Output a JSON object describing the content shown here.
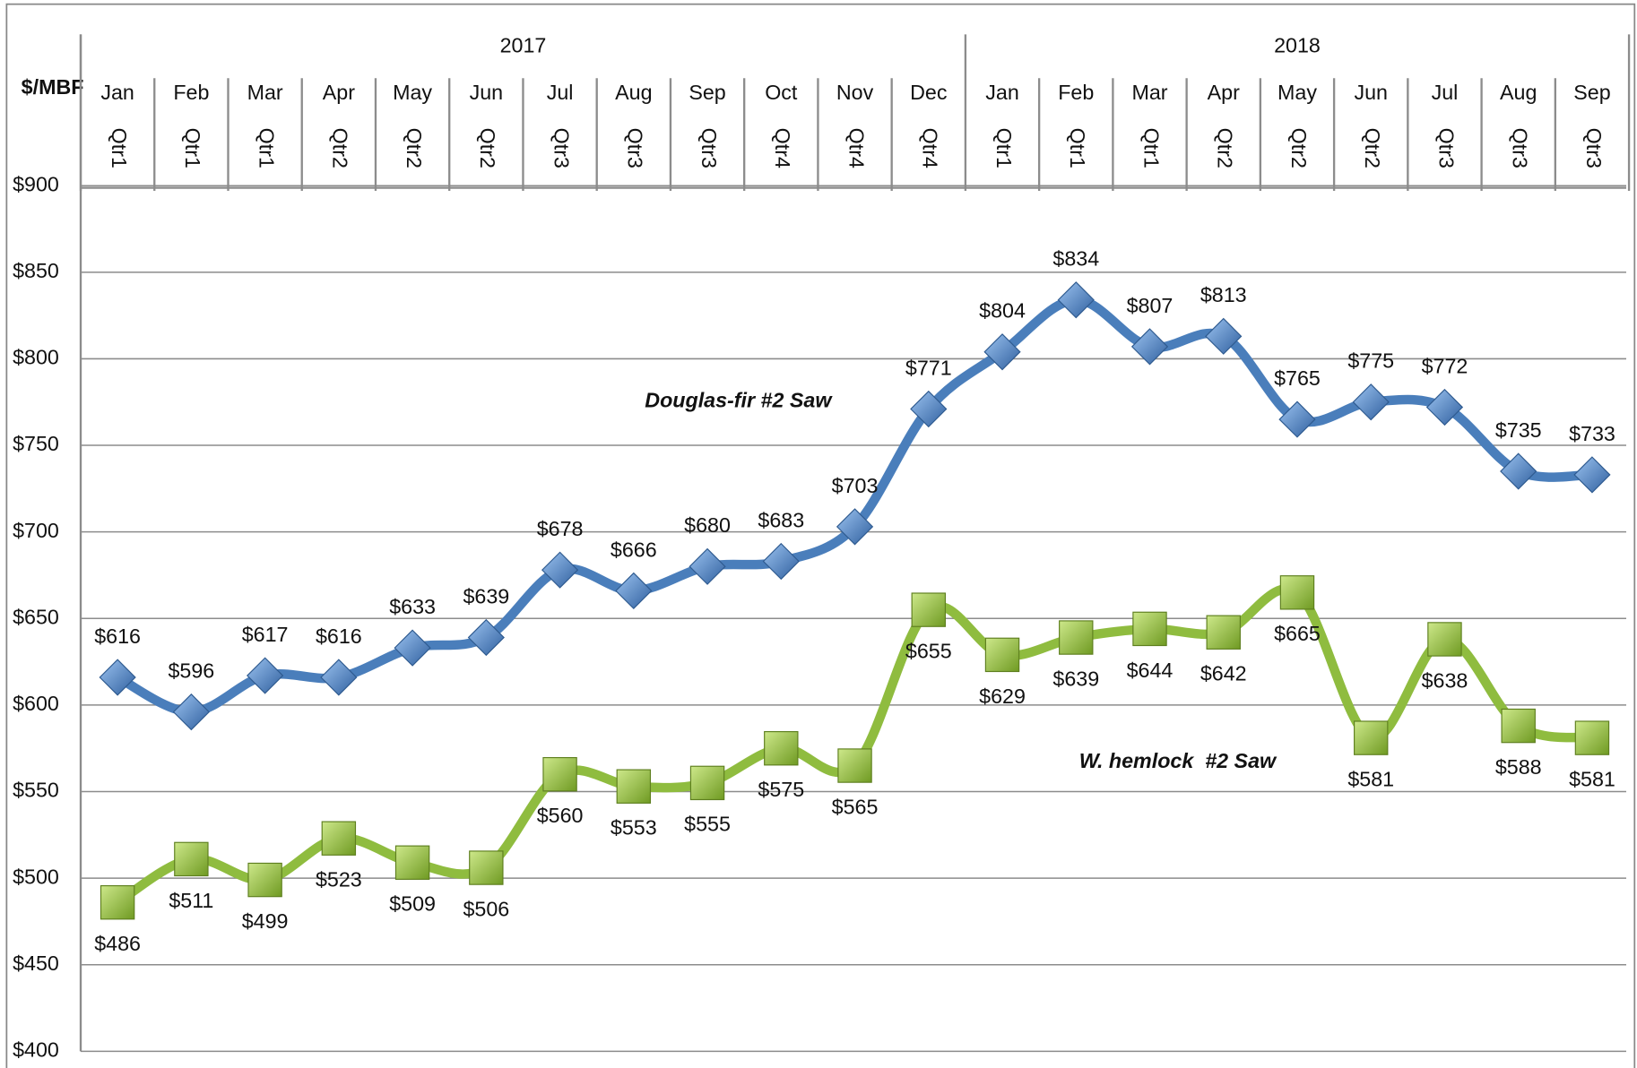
{
  "chart_data": {
    "type": "line",
    "y_label": "$/MBF",
    "years": [
      "2017",
      "2018"
    ],
    "categories": [
      "Jan",
      "Feb",
      "Mar",
      "Apr",
      "May",
      "Jun",
      "Jul",
      "Aug",
      "Sep",
      "Oct",
      "Nov",
      "Dec",
      "Jan",
      "Feb",
      "Mar",
      "Apr",
      "May",
      "Jun",
      "Jul",
      "Aug",
      "Sep"
    ],
    "quarters": [
      "Qtr1",
      "Qtr1",
      "Qtr1",
      "Qtr2",
      "Qtr2",
      "Qtr2",
      "Qtr3",
      "Qtr3",
      "Qtr3",
      "Qtr4",
      "Qtr4",
      "Qtr4",
      "Qtr1",
      "Qtr1",
      "Qtr1",
      "Qtr2",
      "Qtr2",
      "Qtr2",
      "Qtr3",
      "Qtr3",
      "Qtr3"
    ],
    "ylim": [
      400,
      900
    ],
    "yticks": [
      {
        "value": 400,
        "label": "$400"
      },
      {
        "value": 450,
        "label": "$450"
      },
      {
        "value": 500,
        "label": "$500"
      },
      {
        "value": 550,
        "label": "$550"
      },
      {
        "value": 600,
        "label": "$600"
      },
      {
        "value": 650,
        "label": "$650"
      },
      {
        "value": 700,
        "label": "$700"
      },
      {
        "value": 750,
        "label": "$750"
      },
      {
        "value": 800,
        "label": "$800"
      },
      {
        "value": 850,
        "label": "$850"
      },
      {
        "value": 900,
        "label": "$900"
      }
    ],
    "grid": true,
    "series": [
      {
        "name": "Douglas-fir #2 Saw",
        "color": "#4a7ebb",
        "marker": "diamond",
        "values": [
          616,
          596,
          617,
          616,
          633,
          639,
          678,
          666,
          680,
          683,
          703,
          771,
          804,
          834,
          807,
          813,
          765,
          775,
          772,
          735,
          733
        ],
        "value_labels": [
          "$616",
          "$596",
          "$617",
          "$616",
          "$633",
          "$639",
          "$678",
          "$666",
          "$680",
          "$683",
          "$703",
          "$771",
          "$804",
          "$834",
          "$807",
          "$813",
          "$765",
          "$775",
          "$772",
          "$735",
          "$733"
        ]
      },
      {
        "name": "W. hemlock  #2 Saw",
        "color": "#8fbc3f",
        "marker": "square",
        "values": [
          486,
          511,
          499,
          523,
          509,
          506,
          560,
          553,
          555,
          575,
          565,
          655,
          629,
          639,
          644,
          642,
          665,
          581,
          638,
          588,
          581
        ],
        "value_labels": [
          "$486",
          "$511",
          "$499",
          "$523",
          "$509",
          "$506",
          "$560",
          "$553",
          "$555",
          "$575",
          "$565",
          "$655",
          "$629",
          "$639",
          "$644",
          "$642",
          "$665",
          "$581",
          "$638",
          "$588",
          "$581"
        ]
      }
    ]
  }
}
